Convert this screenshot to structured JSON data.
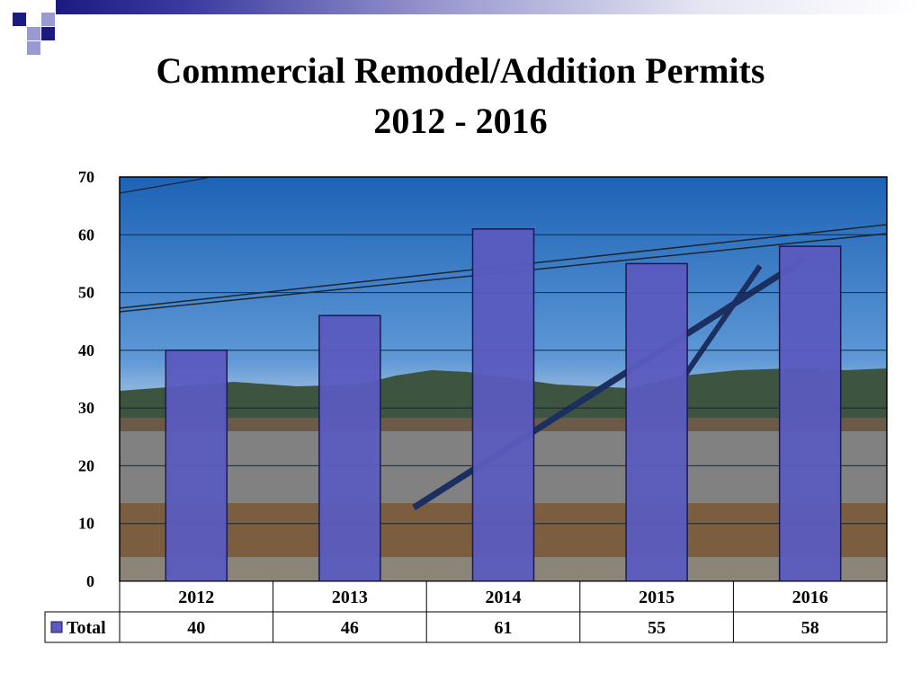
{
  "colors": {
    "bar_fill": "#5b5bbf",
    "bar_stroke": "#1a1a50",
    "sky_top": "#1a5fb0",
    "sky_bottom": "#a8c8e8",
    "title": "#000000",
    "corner_dark": "#1a1a80",
    "corner_light": "#9a9ad0"
  },
  "background_image": "construction-site-photo",
  "chart_data": {
    "type": "bar",
    "title": "Commercial Remodel/Addition Permits",
    "subtitle": "2012 - 2016",
    "categories": [
      "2012",
      "2013",
      "2014",
      "2015",
      "2016"
    ],
    "series": [
      {
        "name": "Total",
        "values": [
          40,
          46,
          61,
          55,
          58
        ]
      }
    ],
    "ylim": [
      0,
      70
    ],
    "yticks": [
      "0",
      "10",
      "20",
      "30",
      "40",
      "50",
      "60",
      "70"
    ],
    "grid": true,
    "legend": "data-table",
    "table": {
      "row_label": "Total",
      "values": [
        "40",
        "46",
        "61",
        "55",
        "58"
      ]
    }
  }
}
